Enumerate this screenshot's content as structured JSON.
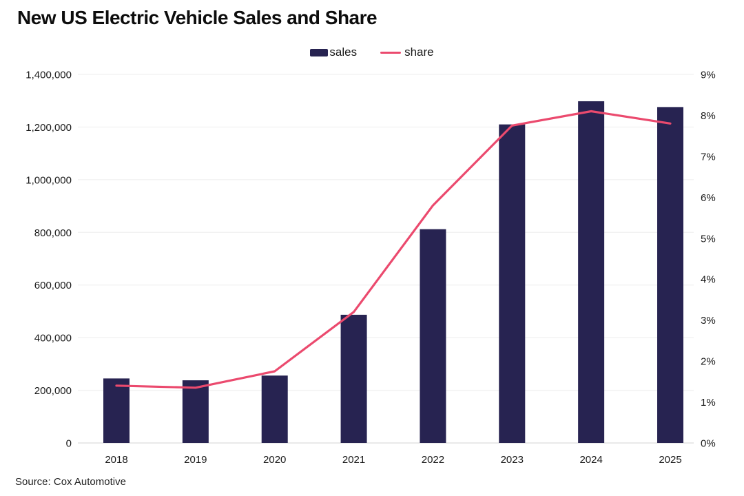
{
  "title": "New US Electric Vehicle Sales and Share",
  "source": "Source: Cox Automotive",
  "legend": {
    "items": [
      {
        "label": "sales",
        "type": "bar"
      },
      {
        "label": "share",
        "type": "line"
      }
    ],
    "position": "top-center"
  },
  "colors": {
    "bar": "#272351",
    "line": "#EB4A6E",
    "grid": "#f1f1f1",
    "baseline": "#dcdcdc",
    "text": "#1a1a1a",
    "title": "#0d0d0d",
    "background": "#ffffff"
  },
  "chart_data": {
    "type": "bar",
    "subtype": "bar+line-combo",
    "title": "New US Electric Vehicle Sales and Share",
    "categories": [
      "2018",
      "2019",
      "2020",
      "2021",
      "2022",
      "2023",
      "2024",
      "2025"
    ],
    "series": [
      {
        "name": "sales",
        "type": "bar",
        "axis": "left",
        "values": [
          245000,
          238000,
          256000,
          487000,
          812000,
          1210000,
          1298000,
          1276000
        ]
      },
      {
        "name": "share",
        "type": "line",
        "axis": "right",
        "values": [
          1.4,
          1.35,
          1.75,
          3.2,
          5.8,
          7.75,
          8.1,
          7.8
        ]
      }
    ],
    "left_axis": {
      "range": [
        0,
        1400000
      ],
      "ticks": [
        0,
        200000,
        400000,
        600000,
        800000,
        1000000,
        1200000,
        1400000
      ],
      "tick_labels": [
        "0",
        "200,000",
        "400,000",
        "600,000",
        "800,000",
        "1,000,000",
        "1,200,000",
        "1,400,000"
      ]
    },
    "right_axis": {
      "range": [
        0,
        9
      ],
      "ticks": [
        0,
        1,
        2,
        3,
        4,
        5,
        6,
        7,
        8,
        9
      ],
      "tick_labels": [
        "0%",
        "1%",
        "2%",
        "3%",
        "4%",
        "5%",
        "6%",
        "7%",
        "8%",
        "9%"
      ]
    },
    "grid": true,
    "legend_position": "top-center"
  }
}
